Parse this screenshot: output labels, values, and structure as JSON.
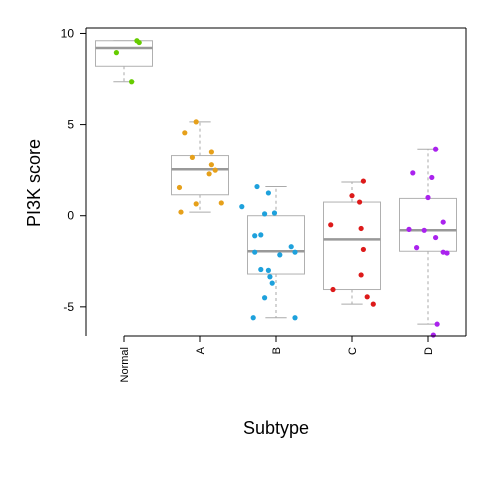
{
  "chart_data": {
    "type": "box",
    "xlabel": "Subtype",
    "ylabel": "PI3K score",
    "ylim": [
      -6.6,
      10.3
    ],
    "yticks": [
      -5,
      0,
      5,
      10
    ],
    "categories": [
      "Normal",
      "A",
      "B",
      "C",
      "D"
    ],
    "groups": [
      {
        "name": "Normal",
        "color": "#66cc00",
        "box": {
          "min": 7.35,
          "q1": 8.2,
          "median": 9.2,
          "q3": 9.6,
          "max": 9.6
        },
        "points": [
          {
            "x": 0.17,
            "y": 9.6
          },
          {
            "x": 0.2,
            "y": 9.5
          },
          {
            "x": -0.1,
            "y": 8.95
          },
          {
            "x": 0.1,
            "y": 7.35
          }
        ]
      },
      {
        "name": "A",
        "color": "#e6a01a",
        "box": {
          "min": 0.2,
          "q1": 1.15,
          "median": 2.55,
          "q3": 3.3,
          "max": 5.15
        },
        "points": [
          {
            "x": -0.05,
            "y": 5.15
          },
          {
            "x": -0.2,
            "y": 4.55
          },
          {
            "x": -0.1,
            "y": 3.2
          },
          {
            "x": 0.15,
            "y": 3.5
          },
          {
            "x": 0.15,
            "y": 2.8
          },
          {
            "x": 0.2,
            "y": 2.5
          },
          {
            "x": 0.12,
            "y": 2.3
          },
          {
            "x": -0.27,
            "y": 1.55
          },
          {
            "x": -0.05,
            "y": 0.65
          },
          {
            "x": 0.28,
            "y": 0.7
          },
          {
            "x": -0.25,
            "y": 0.2
          }
        ]
      },
      {
        "name": "B",
        "color": "#1ea1dc",
        "box": {
          "min": -5.6,
          "q1": -3.2,
          "median": -1.95,
          "q3": 0.0,
          "max": 1.6
        },
        "points": [
          {
            "x": -0.25,
            "y": 1.6
          },
          {
            "x": -0.1,
            "y": 1.25
          },
          {
            "x": -0.45,
            "y": 0.5
          },
          {
            "x": -0.15,
            "y": 0.1
          },
          {
            "x": -0.02,
            "y": 0.15
          },
          {
            "x": -0.2,
            "y": -1.05
          },
          {
            "x": -0.28,
            "y": -1.1
          },
          {
            "x": 0.2,
            "y": -1.7
          },
          {
            "x": -0.28,
            "y": -2.0
          },
          {
            "x": 0.05,
            "y": -2.15
          },
          {
            "x": 0.25,
            "y": -2.0
          },
          {
            "x": -0.2,
            "y": -2.95
          },
          {
            "x": -0.1,
            "y": -3.0
          },
          {
            "x": -0.08,
            "y": -3.35
          },
          {
            "x": -0.05,
            "y": -3.7
          },
          {
            "x": -0.15,
            "y": -4.5
          },
          {
            "x": -0.3,
            "y": -5.6
          },
          {
            "x": 0.25,
            "y": -5.6
          }
        ]
      },
      {
        "name": "C",
        "color": "#dd1a1a",
        "box": {
          "min": -4.85,
          "q1": -4.05,
          "median": -1.3,
          "q3": 0.75,
          "max": 1.85
        },
        "points": [
          {
            "x": 0.15,
            "y": 1.9
          },
          {
            "x": 0.0,
            "y": 1.1
          },
          {
            "x": 0.1,
            "y": 0.75
          },
          {
            "x": -0.28,
            "y": -0.5
          },
          {
            "x": 0.12,
            "y": -0.7
          },
          {
            "x": 0.15,
            "y": -1.85
          },
          {
            "x": 0.12,
            "y": -3.25
          },
          {
            "x": -0.25,
            "y": -4.05
          },
          {
            "x": 0.2,
            "y": -4.45
          },
          {
            "x": 0.28,
            "y": -4.85
          }
        ]
      },
      {
        "name": "D",
        "color": "#aa22ee",
        "box": {
          "min": -5.95,
          "q1": -1.95,
          "median": -0.8,
          "q3": 0.95,
          "max": 3.65
        },
        "points": [
          {
            "x": 0.1,
            "y": 3.65
          },
          {
            "x": -0.2,
            "y": 2.35
          },
          {
            "x": 0.05,
            "y": 2.1
          },
          {
            "x": 0.0,
            "y": 1.0
          },
          {
            "x": 0.2,
            "y": -0.35
          },
          {
            "x": -0.25,
            "y": -0.75
          },
          {
            "x": -0.05,
            "y": -0.8
          },
          {
            "x": 0.1,
            "y": -1.2
          },
          {
            "x": -0.15,
            "y": -1.75
          },
          {
            "x": 0.2,
            "y": -2.0
          },
          {
            "x": 0.25,
            "y": -2.05
          },
          {
            "x": 0.12,
            "y": -5.95
          },
          {
            "x": 0.07,
            "y": -6.55
          }
        ]
      }
    ]
  }
}
